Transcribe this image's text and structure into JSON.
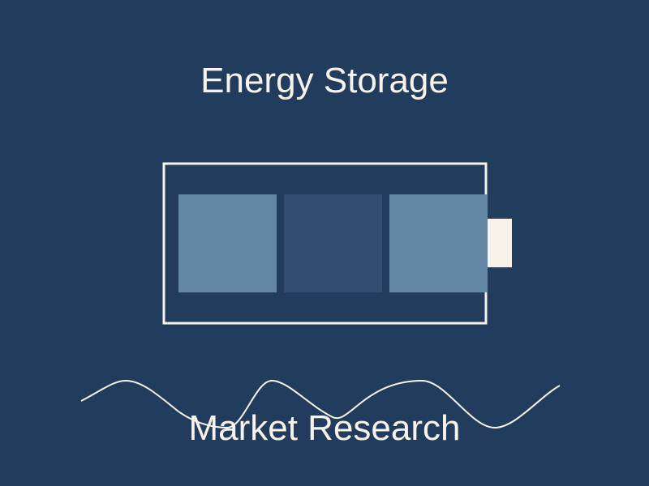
{
  "title": "Energy Storage",
  "subtitle": "Market Research",
  "colors": {
    "background": "#213c5d",
    "foreground": "#f7f3ea",
    "cell_light": "#6487a6",
    "cell_dark": "#314e70"
  },
  "icon": "battery-icon",
  "battery": {
    "cells": [
      {
        "tone": "light"
      },
      {
        "tone": "dark"
      },
      {
        "tone": "light"
      }
    ]
  },
  "decoration": "wave-line"
}
